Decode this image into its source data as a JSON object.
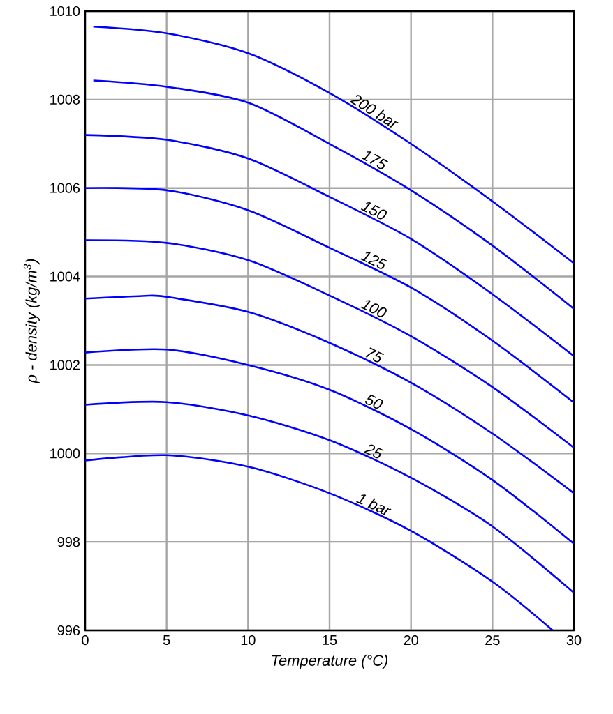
{
  "chart_data": {
    "type": "line",
    "xlabel": "Temperature (°C)",
    "ylabel": "ρ - density (kg/m$^{3}$)",
    "xlim": [
      0,
      30
    ],
    "ylim": [
      996,
      1010
    ],
    "xticks": [
      0,
      5,
      10,
      15,
      20,
      25,
      30
    ],
    "yticks": [
      996,
      998,
      1000,
      1002,
      1004,
      1006,
      1008,
      1010
    ],
    "grid": true,
    "legend": false,
    "marker": "none",
    "line_style": "solid",
    "series": [
      {
        "name": "200 bar",
        "color": "#0000ff",
        "x": [
          0.5,
          5,
          10,
          15,
          20,
          25,
          30
        ],
        "values": [
          1009.65,
          1009.5,
          1009.05,
          1008.15,
          1007.0,
          1005.7,
          1004.3
        ]
      },
      {
        "name": "175",
        "color": "#0000ff",
        "x": [
          0.5,
          5,
          10,
          15,
          20,
          25,
          30
        ],
        "values": [
          1008.43,
          1008.29,
          1007.93,
          1007.0,
          1005.95,
          1004.7,
          1003.27
        ]
      },
      {
        "name": "150",
        "color": "#0000ff",
        "x": [
          0,
          5,
          10,
          15,
          20,
          25,
          30
        ],
        "values": [
          1007.2,
          1007.09,
          1006.67,
          1005.8,
          1004.85,
          1003.6,
          1002.2
        ]
      },
      {
        "name": "125",
        "color": "#0000ff",
        "x": [
          0,
          5,
          10,
          15,
          20,
          25,
          30
        ],
        "values": [
          1006.0,
          1005.95,
          1005.5,
          1004.65,
          1003.75,
          1002.55,
          1001.15
        ]
      },
      {
        "name": "100",
        "color": "#0000ff",
        "x": [
          0,
          5,
          10,
          15,
          20,
          25,
          30
        ],
        "values": [
          1004.82,
          1004.76,
          1004.37,
          1003.57,
          1002.65,
          1001.5,
          1000.13
        ]
      },
      {
        "name": "75",
        "color": "#0000ff",
        "x": [
          0,
          3.5,
          5,
          10,
          15,
          20,
          25,
          30
        ],
        "values": [
          1003.5,
          1003.56,
          1003.54,
          1003.2,
          1002.5,
          1001.6,
          1000.45,
          999.1
        ]
      },
      {
        "name": "50",
        "color": "#0000ff",
        "x": [
          0,
          5,
          10,
          15,
          20,
          25,
          30
        ],
        "values": [
          1002.28,
          1002.35,
          1002.0,
          1001.44,
          1000.55,
          999.4,
          997.96
        ]
      },
      {
        "name": "25",
        "color": "#0000ff",
        "x": [
          0,
          5,
          10,
          15,
          20,
          25,
          30
        ],
        "values": [
          1001.1,
          1001.16,
          1000.86,
          1000.3,
          999.45,
          998.35,
          996.85
        ]
      },
      {
        "name": "1 bar",
        "color": "#0000ff",
        "x": [
          0,
          5,
          10,
          15,
          20,
          25,
          28.7
        ],
        "values": [
          999.84,
          999.96,
          999.7,
          999.1,
          998.25,
          997.1,
          996.0
        ]
      }
    ]
  }
}
